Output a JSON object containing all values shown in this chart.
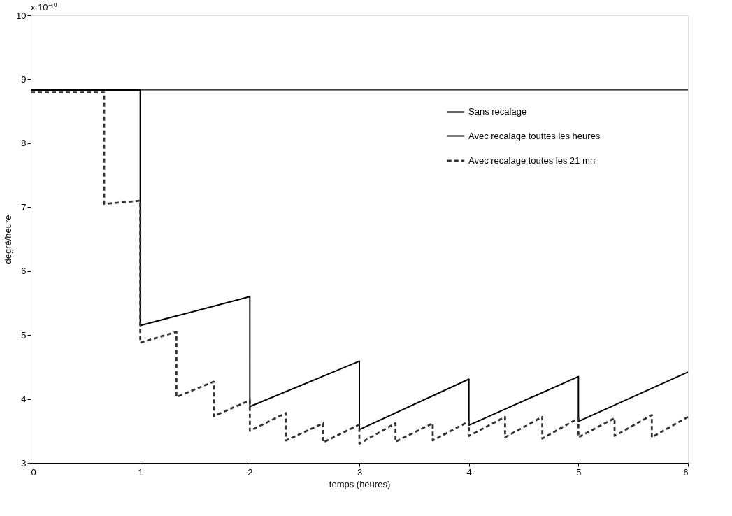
{
  "chart_data": {
    "type": "line",
    "xlabel": "temps (heures)",
    "ylabel": "degré/heure",
    "annotations": [
      "x 10⁻¹⁰"
    ],
    "xlim": [
      0,
      6
    ],
    "xticks": [
      0,
      1,
      2,
      3,
      4,
      5,
      6
    ],
    "ylim": [
      3,
      10
    ],
    "yticks": [
      3,
      4,
      5,
      6,
      7,
      8,
      9,
      10
    ],
    "grid": false,
    "legend": "top right",
    "series": [
      {
        "name": "Sans recalage",
        "color": "#000000",
        "line_style": "solid",
        "x": [
          0,
          6
        ],
        "values": [
          8.83,
          8.83
        ]
      },
      {
        "name": "Avec recalage touttes les heures",
        "color": "#000000",
        "line_style": "solid",
        "x": [
          0,
          1,
          1,
          2,
          2,
          3,
          3,
          4,
          4,
          5,
          5,
          6
        ],
        "values": [
          8.83,
          8.83,
          5.15,
          5.6,
          3.88,
          4.59,
          3.52,
          4.31,
          3.59,
          4.35,
          3.65,
          4.42
        ]
      },
      {
        "name": "Avec recalage toutes les 21 mn",
        "color": "#333333",
        "line_style": "dashed",
        "x": [
          0,
          0.67,
          0.67,
          1,
          1,
          1.33,
          1.33,
          1.67,
          1.67,
          2,
          2,
          2.33,
          2.33,
          2.67,
          2.67,
          3,
          3,
          3.33,
          3.33,
          3.67,
          3.67,
          4,
          4,
          4.33,
          4.33,
          4.67,
          4.67,
          5,
          5,
          5.33,
          5.33,
          5.67,
          5.67,
          6
        ],
        "values": [
          8.8,
          8.8,
          7.05,
          7.1,
          4.88,
          5.05,
          4.03,
          4.27,
          3.73,
          3.98,
          3.5,
          3.78,
          3.35,
          3.62,
          3.32,
          3.6,
          3.3,
          3.62,
          3.33,
          3.62,
          3.35,
          3.65,
          3.42,
          3.72,
          3.4,
          3.72,
          3.38,
          3.7,
          3.4,
          3.7,
          3.42,
          3.75,
          3.4,
          3.72
        ]
      }
    ]
  }
}
